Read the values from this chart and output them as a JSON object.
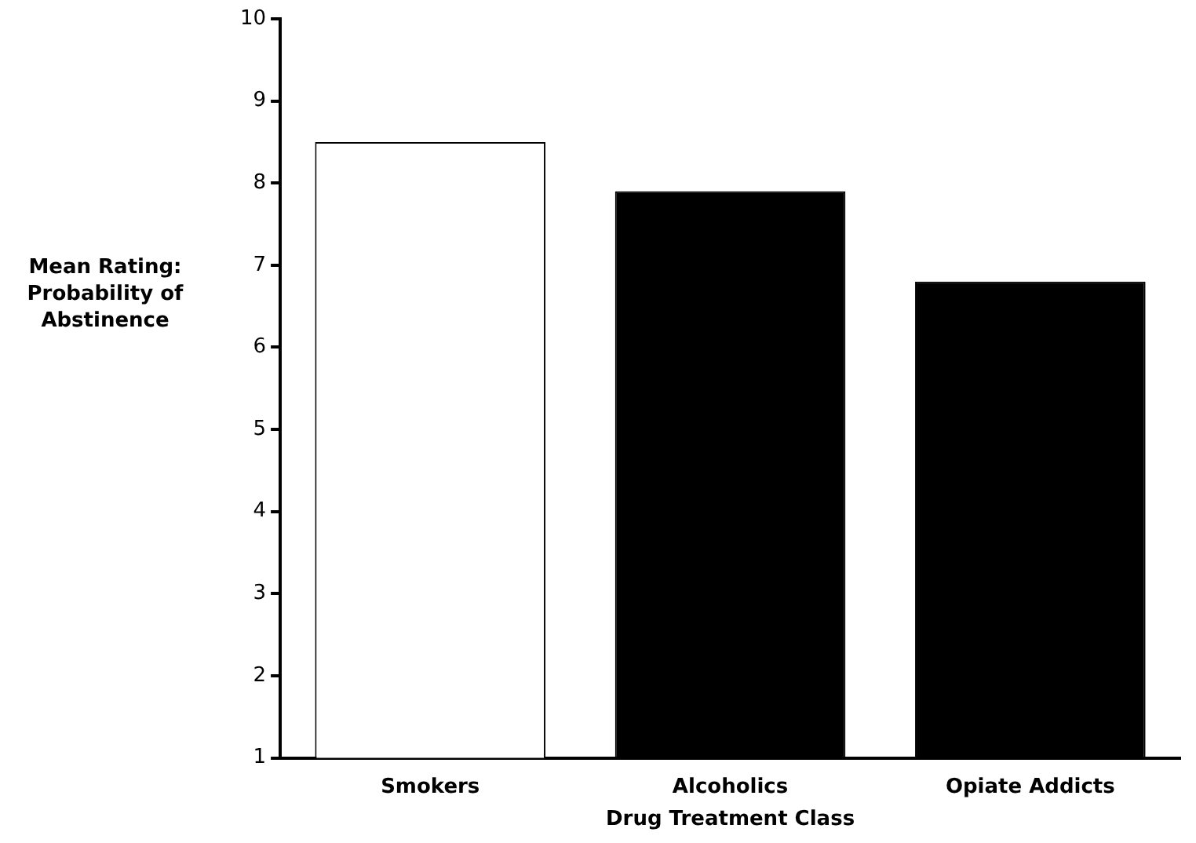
{
  "chart_data": {
    "type": "bar",
    "xlabel": "Drug Treatment Class",
    "ylabel": "Mean Rating: Probability of Abstinence",
    "categories": [
      "Smokers",
      "Alcoholics",
      "Opiate Addicts"
    ],
    "values": [
      8.5,
      7.9,
      6.8
    ],
    "colors": [
      "#ffffff",
      "#000000",
      "#000000"
    ],
    "ylim": [
      1,
      10
    ],
    "yticks": [
      1,
      2,
      3,
      4,
      5,
      6,
      7,
      8,
      9,
      10
    ],
    "grid": false
  }
}
